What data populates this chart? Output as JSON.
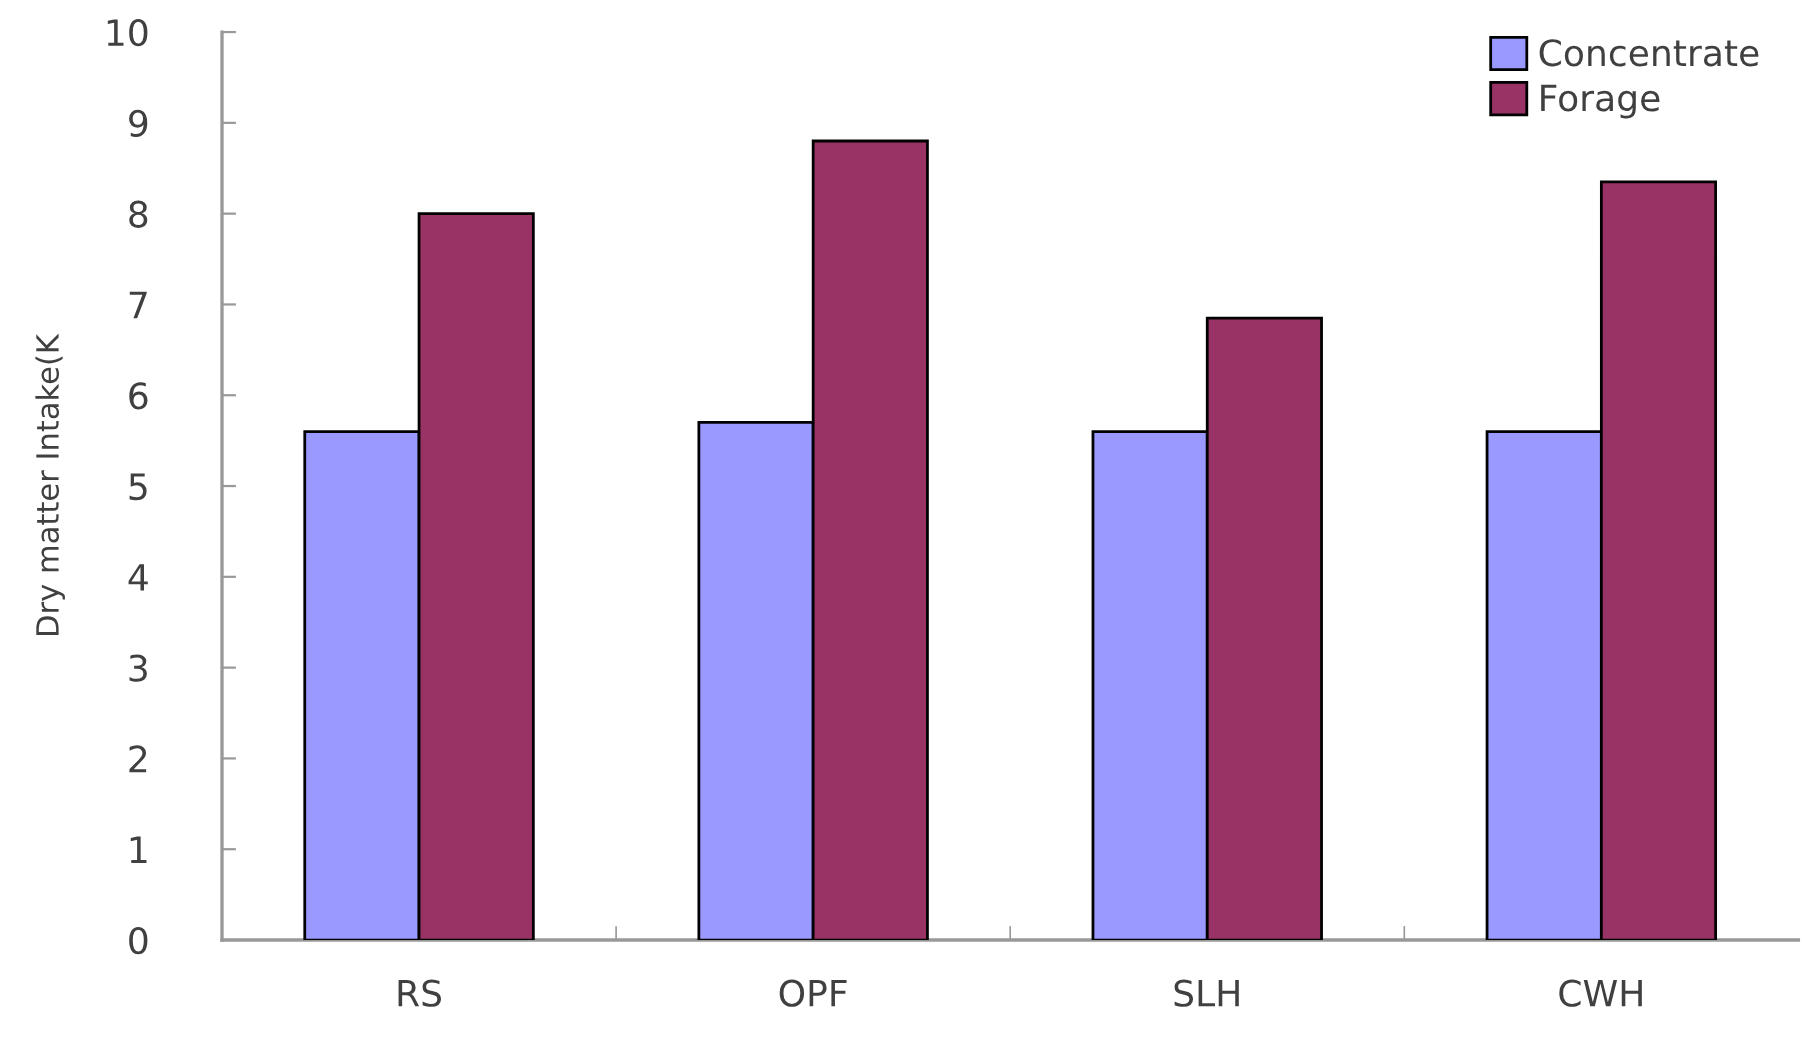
{
  "chart_data": {
    "type": "bar",
    "ylabel": "Dry matter Intake(K",
    "categories": [
      "RS",
      "OPF",
      "SLH",
      "CWH"
    ],
    "series": [
      {
        "name": "Concentrate",
        "color": "#9999ff",
        "values": [
          5.6,
          5.7,
          5.6,
          5.6
        ]
      },
      {
        "name": "Forage",
        "color": "#993366",
        "values": [
          8.0,
          8.8,
          6.85,
          8.35
        ]
      }
    ],
    "ylim": [
      0,
      10
    ],
    "yticks": [
      0,
      1,
      2,
      3,
      4,
      5,
      6,
      7,
      8,
      9,
      10
    ],
    "grid": false,
    "legend": "top right"
  }
}
